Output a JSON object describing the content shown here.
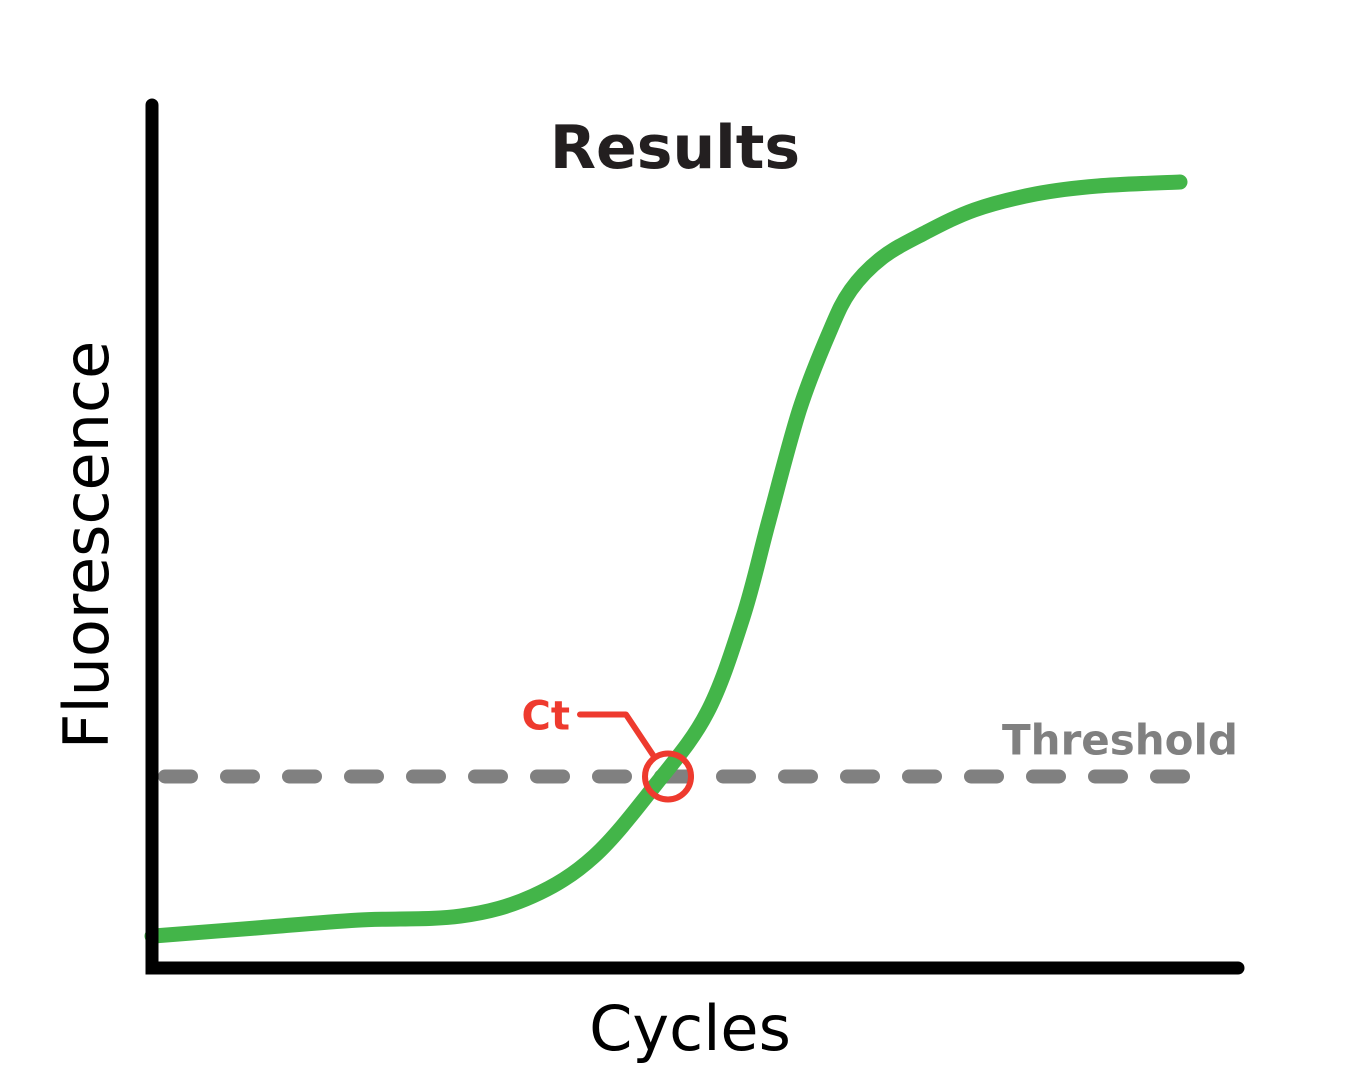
{
  "chart_data": {
    "type": "line",
    "title": "Results",
    "xlabel": "Cycles",
    "ylabel": "Fluorescence",
    "grid": false,
    "legend": "none",
    "xlim": [
      0,
      1
    ],
    "ylim": [
      0,
      1
    ],
    "series": [
      {
        "color": "#43b549",
        "x": [
          0.0,
          0.1,
          0.2,
          0.3,
          0.37,
          0.43,
          0.49,
          0.54,
          0.575,
          0.6,
          0.63,
          0.66,
          0.68,
          0.71,
          0.75,
          0.8,
          0.86,
          0.92,
          1.0
        ],
        "y": [
          0.04,
          0.05,
          0.06,
          0.065,
          0.09,
          0.14,
          0.23,
          0.32,
          0.44,
          0.56,
          0.7,
          0.8,
          0.85,
          0.89,
          0.92,
          0.95,
          0.97,
          0.98,
          0.985
        ]
      }
    ],
    "threshold": {
      "label": "Threshold",
      "value": 0.24,
      "color": "#808080"
    },
    "ct_marker": {
      "label": "Ct",
      "x": 0.5,
      "y": 0.24,
      "color": "#ee3a2e"
    },
    "axis_color": "#000000"
  }
}
